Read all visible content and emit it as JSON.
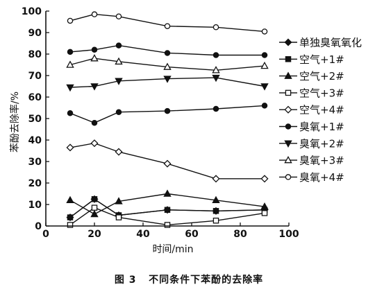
{
  "chart_data": {
    "type": "line",
    "xlabel": "时间/min",
    "ylabel": "苯酚去除率/%",
    "xlim": [
      0,
      100
    ],
    "ylim": [
      0,
      100
    ],
    "xticks": [
      0,
      20,
      40,
      60,
      80,
      100
    ],
    "yticks": [
      0,
      10,
      20,
      30,
      40,
      50,
      60,
      70,
      80,
      90,
      100
    ],
    "legend_position": "right",
    "caption": "图 3   不同条件下苯酚的去除率",
    "series": [
      {
        "name": "单独臭氧氧化",
        "marker": "diamond-filled",
        "x": [
          10,
          20,
          30,
          50,
          70,
          90
        ],
        "y": [
          4,
          12.5,
          5,
          7.5,
          7,
          7.5
        ]
      },
      {
        "name": "空气+1#",
        "marker": "square-filled",
        "x": [
          10,
          20,
          30,
          50,
          70,
          90
        ],
        "y": [
          4,
          12.5,
          5,
          7.5,
          7,
          7.5
        ]
      },
      {
        "name": "空气+2#",
        "marker": "triangle-up-filled",
        "x": [
          10,
          20,
          30,
          50,
          70,
          90
        ],
        "y": [
          12,
          5.5,
          11.5,
          15,
          12,
          9
        ]
      },
      {
        "name": "空气+3#",
        "marker": "square-open",
        "x": [
          10,
          20,
          30,
          50,
          70,
          90
        ],
        "y": [
          0.5,
          8.5,
          4,
          0.5,
          2.5,
          6
        ]
      },
      {
        "name": "空气+4#",
        "marker": "diamond-open",
        "x": [
          10,
          20,
          30,
          50,
          70,
          90
        ],
        "y": [
          36.5,
          38.5,
          34.5,
          29,
          22,
          22
        ]
      },
      {
        "name": "臭氧+1#",
        "marker": "circle-filled",
        "x": [
          10,
          20,
          30,
          50,
          70,
          90
        ],
        "y": [
          52.5,
          48,
          53,
          53.5,
          54.5,
          56
        ]
      },
      {
        "name": "臭氧+2#",
        "marker": "triangle-down-filled",
        "x": [
          10,
          20,
          30,
          50,
          70,
          90
        ],
        "y": [
          64.5,
          65,
          67.5,
          68.5,
          69,
          65
        ]
      },
      {
        "name": "臭氧+3#",
        "marker": "triangle-up-open",
        "x": [
          10,
          20,
          30,
          50,
          70,
          90
        ],
        "y": [
          75,
          78,
          76.5,
          74,
          72.5,
          74.5
        ]
      },
      {
        "name": "臭氧+4#",
        "marker": "circle-open",
        "x": [
          10,
          20,
          30,
          50,
          70,
          90
        ],
        "y": [
          95.5,
          98.5,
          97.5,
          93,
          92.5,
          90.5
        ]
      }
    ],
    "extra_series": [
      {
        "marker": "circle-filled",
        "x": [
          10,
          20,
          30,
          50,
          70,
          90
        ],
        "y": [
          81,
          82,
          84,
          80.5,
          79.5,
          79.5
        ]
      }
    ]
  }
}
